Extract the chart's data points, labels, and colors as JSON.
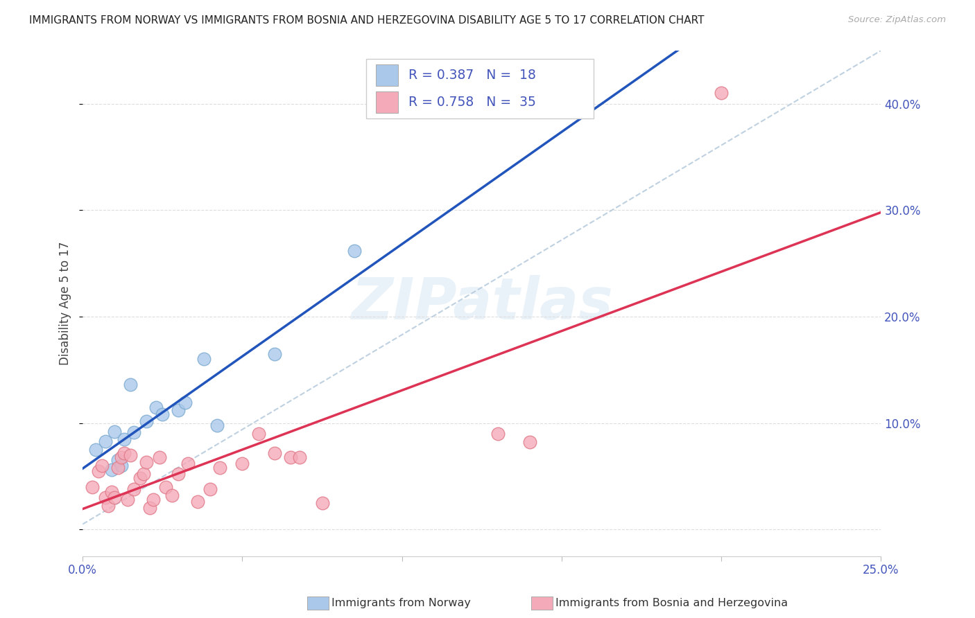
{
  "title": "IMMIGRANTS FROM NORWAY VS IMMIGRANTS FROM BOSNIA AND HERZEGOVINA DISABILITY AGE 5 TO 17 CORRELATION CHART",
  "source": "Source: ZipAtlas.com",
  "ylabel": "Disability Age 5 to 17",
  "xlim": [
    0.0,
    0.25
  ],
  "ylim": [
    -0.025,
    0.45
  ],
  "x_ticks": [
    0.0,
    0.05,
    0.1,
    0.15,
    0.2,
    0.25
  ],
  "x_tick_labels": [
    "0.0%",
    "",
    "",
    "",
    "",
    "25.0%"
  ],
  "y_ticks": [
    0.0,
    0.1,
    0.2,
    0.3,
    0.4
  ],
  "y_tick_labels_right": [
    "",
    "10.0%",
    "20.0%",
    "30.0%",
    "40.0%"
  ],
  "norway_color": "#aac8ea",
  "norway_edge_color": "#7aaad0",
  "bosnia_color": "#f4aab8",
  "bosnia_edge_color": "#e07888",
  "norway_R": 0.387,
  "norway_N": 18,
  "bosnia_R": 0.758,
  "bosnia_N": 35,
  "watermark": "ZIPatlas",
  "norway_x": [
    0.004,
    0.007,
    0.009,
    0.01,
    0.011,
    0.012,
    0.013,
    0.015,
    0.016,
    0.02,
    0.023,
    0.025,
    0.03,
    0.032,
    0.038,
    0.042,
    0.06,
    0.085
  ],
  "norway_y": [
    0.075,
    0.083,
    0.056,
    0.092,
    0.065,
    0.06,
    0.085,
    0.136,
    0.091,
    0.102,
    0.115,
    0.108,
    0.112,
    0.119,
    0.16,
    0.098,
    0.165,
    0.262
  ],
  "bosnia_x": [
    0.003,
    0.005,
    0.006,
    0.007,
    0.008,
    0.009,
    0.01,
    0.011,
    0.012,
    0.013,
    0.014,
    0.015,
    0.016,
    0.018,
    0.019,
    0.02,
    0.021,
    0.022,
    0.024,
    0.026,
    0.028,
    0.03,
    0.033,
    0.036,
    0.04,
    0.043,
    0.05,
    0.055,
    0.06,
    0.065,
    0.068,
    0.075,
    0.13,
    0.14,
    0.2
  ],
  "bosnia_y": [
    0.04,
    0.055,
    0.06,
    0.03,
    0.022,
    0.035,
    0.03,
    0.058,
    0.068,
    0.072,
    0.028,
    0.07,
    0.038,
    0.048,
    0.052,
    0.063,
    0.02,
    0.028,
    0.068,
    0.04,
    0.032,
    0.052,
    0.062,
    0.026,
    0.038,
    0.058,
    0.062,
    0.09,
    0.072,
    0.068,
    0.068,
    0.025,
    0.09,
    0.082,
    0.41
  ],
  "norway_line_color": "#2255bb",
  "bosnia_line_color": "#dd3355",
  "trendline_color": "#b8ccdd",
  "grid_color": "#dddddd",
  "background_color": "#ffffff",
  "tick_color": "#4455bb",
  "legend_text_color": "#4455bb",
  "legend_label_color": "#333333"
}
